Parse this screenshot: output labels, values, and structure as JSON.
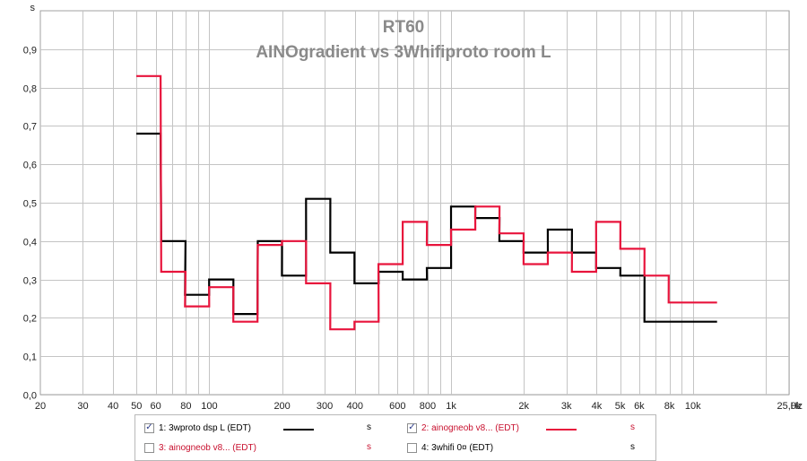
{
  "chart_data": {
    "type": "line",
    "title": "RT60",
    "subtitle": "AINOgradient vs 3Whifiproto room L",
    "y_unit_label": "s",
    "x_unit_label": "Hz",
    "xscale": "log",
    "xlim": [
      20,
      25000
    ],
    "ylim": [
      0,
      1.0
    ],
    "grid": true,
    "y_ticks": [
      "0,0",
      "0,1",
      "0,2",
      "0,3",
      "0,4",
      "0,5",
      "0,6",
      "0,7",
      "0,8",
      "0,9"
    ],
    "x_ticks": [
      {
        "v": 20,
        "label": "20"
      },
      {
        "v": 30,
        "label": "30"
      },
      {
        "v": 40,
        "label": "40"
      },
      {
        "v": 50,
        "label": "50"
      },
      {
        "v": 60,
        "label": "60"
      },
      {
        "v": 80,
        "label": "80"
      },
      {
        "v": 100,
        "label": "100"
      },
      {
        "v": 200,
        "label": "200"
      },
      {
        "v": 300,
        "label": "300"
      },
      {
        "v": 400,
        "label": "400"
      },
      {
        "v": 600,
        "label": "600"
      },
      {
        "v": 800,
        "label": "800"
      },
      {
        "v": 1000,
        "label": "1k"
      },
      {
        "v": 2000,
        "label": "2k"
      },
      {
        "v": 3000,
        "label": "3k"
      },
      {
        "v": 4000,
        "label": "4k"
      },
      {
        "v": 5000,
        "label": "5k"
      },
      {
        "v": 6000,
        "label": "6k"
      },
      {
        "v": 8000,
        "label": "8k"
      },
      {
        "v": 10000,
        "label": "10k"
      },
      {
        "v": 25000,
        "label": "25,0k"
      }
    ],
    "series": [
      {
        "name": "1: 3wproto dsp L (EDT)",
        "color": "#000000",
        "bands_hz": [
          56,
          71,
          89,
          112,
          141,
          178,
          224,
          282,
          355,
          447,
          562,
          708,
          891,
          1122,
          1413,
          1778,
          2239,
          2818,
          3548,
          4467,
          5623,
          7079,
          8913,
          11220
        ],
        "values": [
          0.68,
          0.4,
          0.26,
          0.3,
          0.21,
          0.4,
          0.31,
          0.51,
          0.37,
          0.29,
          0.32,
          0.3,
          0.33,
          0.49,
          0.46,
          0.4,
          0.37,
          0.43,
          0.37,
          0.33,
          0.31,
          0.19,
          0.19,
          0.19
        ]
      },
      {
        "name": "2: ainogneob v8... (EDT)",
        "color": "#e8143c",
        "bands_hz": [
          56,
          71,
          89,
          112,
          141,
          178,
          224,
          282,
          355,
          447,
          562,
          708,
          891,
          1122,
          1413,
          1778,
          2239,
          2818,
          3548,
          4467,
          5623,
          7079,
          8913,
          11220
        ],
        "values": [
          0.83,
          0.32,
          0.23,
          0.28,
          0.19,
          0.39,
          0.4,
          0.29,
          0.17,
          0.19,
          0.34,
          0.45,
          0.39,
          0.43,
          0.49,
          0.42,
          0.34,
          0.37,
          0.32,
          0.45,
          0.38,
          0.31,
          0.24,
          0.24
        ]
      }
    ]
  },
  "legend": {
    "entries": [
      {
        "label": "1: 3wproto dsp L (EDT)",
        "checked": true,
        "text_color": "#000000",
        "line_color": "#000000",
        "unit": "s",
        "check_mark": "✓"
      },
      {
        "label": "2: ainogneob v8... (EDT)",
        "checked": true,
        "text_color": "#c8102e",
        "line_color": "#e8143c",
        "unit": "s",
        "check_mark": "✓"
      },
      {
        "label": "3: ainogneob v8... (EDT)",
        "checked": false,
        "text_color": "#c8102e",
        "line_color": "",
        "unit": "s",
        "check_mark": ""
      },
      {
        "label": "4: 3whifi 0¤ (EDT)",
        "checked": false,
        "text_color": "#000000",
        "line_color": "",
        "unit": "s",
        "check_mark": ""
      }
    ]
  }
}
